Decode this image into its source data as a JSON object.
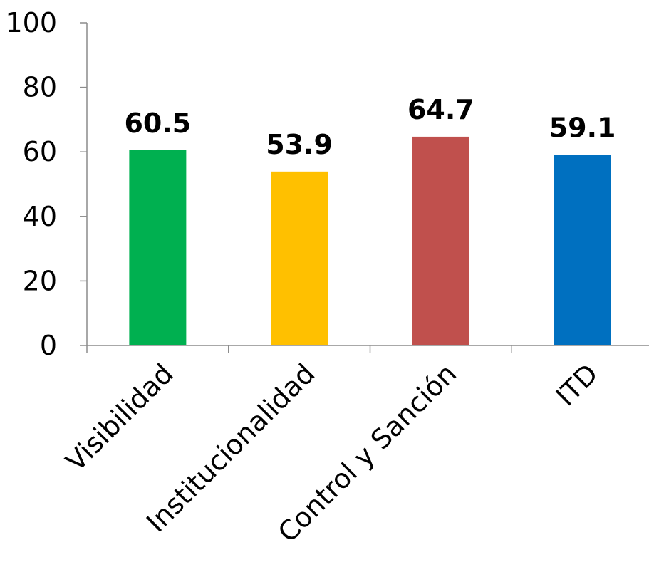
{
  "chart_data": {
    "type": "bar",
    "title": "",
    "xlabel": "",
    "ylabel": "",
    "categories": [
      "Visibilidad",
      "Institucionalidad",
      "Control y Sanción",
      "ITD"
    ],
    "values": [
      60.5,
      53.9,
      64.7,
      59.1
    ],
    "data_labels": [
      "60.5",
      "53.9",
      "64.7",
      "59.1"
    ],
    "colors": [
      "#00b050",
      "#ffc000",
      "#c0504d",
      "#0070c0"
    ],
    "ylim": [
      0,
      100
    ],
    "yticks": [
      0,
      20,
      40,
      60,
      80,
      100
    ],
    "ytick_labels": [
      "0",
      "20",
      "40",
      "60",
      "80",
      "100"
    ],
    "grid": false,
    "legend": "none"
  }
}
